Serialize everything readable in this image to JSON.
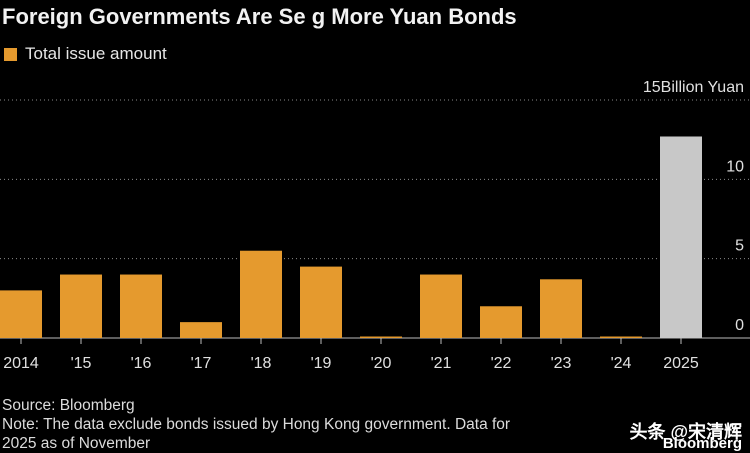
{
  "title": "Foreign Governments Are Se   g More Yuan Bonds",
  "legend": {
    "label": "Total issue amount",
    "color": "#e59a2e"
  },
  "chart_data": {
    "type": "bar",
    "categories": [
      "2014",
      "'15",
      "'16",
      "'17",
      "'18",
      "'19",
      "'20",
      "'21",
      "'22",
      "'23",
      "'24",
      "2025"
    ],
    "values": [
      3.0,
      4.0,
      4.0,
      1.0,
      5.5,
      4.5,
      0.05,
      4.0,
      2.0,
      3.7,
      0.05,
      12.7
    ],
    "bar_colors": [
      "#e59a2e",
      "#e59a2e",
      "#e59a2e",
      "#e59a2e",
      "#e59a2e",
      "#e59a2e",
      "#e59a2e",
      "#e59a2e",
      "#e59a2e",
      "#e59a2e",
      "#e59a2e",
      "#c8c8c8"
    ],
    "y_ticks": [
      0,
      5,
      10,
      15
    ],
    "y_top_label": "15Billion Yuan",
    "ylim": [
      0,
      15
    ],
    "grid": true,
    "legend_position": "top-left"
  },
  "source": "Source: Bloomberg",
  "note_line1": "Note: The data exclude bonds issued by Hong Kong government. Data for",
  "note_line2": "2025 as of November",
  "watermark": "头条 @宋清辉",
  "watermark_sub": "Bloomberg"
}
